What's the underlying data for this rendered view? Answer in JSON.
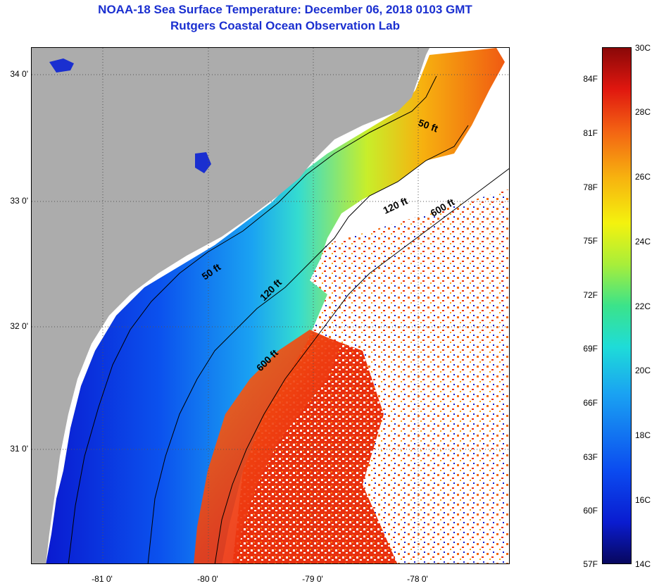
{
  "header": {
    "title_line1": "NOAA-18 Sea Surface Temperature:  December 06, 2018 0103 GMT",
    "title_line2": "Rutgers Coastal Ocean Observation Lab"
  },
  "map": {
    "lat_labels": [
      "34 0'",
      "33 0'",
      "32 0'",
      "31 0'"
    ],
    "lon_labels": [
      "-81 0'",
      "-80 0'",
      "-79 0'",
      "-78 0'"
    ],
    "contour_labels": {
      "c50_north": "50 ft",
      "c50_south": "50 ft",
      "c120_north": "120 ft",
      "c120_south": "120 ft",
      "c600_north": "600 ft",
      "c600_south": "600 ft"
    },
    "colors": {
      "land": "#acacac",
      "cloud": "#ffffff",
      "cold": "#0a1cd0",
      "warm": "#f36213"
    }
  },
  "colorbar": {
    "celsius_labels": [
      "30C",
      "28C",
      "26C",
      "24C",
      "22C",
      "20C",
      "18C",
      "16C",
      "14C"
    ],
    "fahrenheit_labels": [
      "84F",
      "81F",
      "78F",
      "75F",
      "72F",
      "69F",
      "66F",
      "63F",
      "60F",
      "57F"
    ],
    "range_c": [
      14,
      30
    ],
    "range_f": [
      57,
      86
    ]
  }
}
